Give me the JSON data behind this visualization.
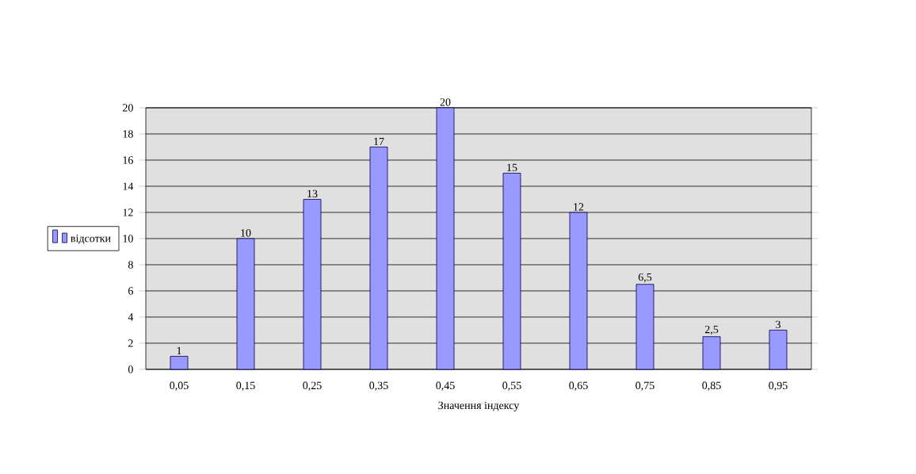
{
  "chart_data": {
    "type": "bar",
    "xlabel": "Значення індексу",
    "categories": [
      "0,05",
      "0,15",
      "0,25",
      "0,35",
      "0,45",
      "0,55",
      "0,65",
      "0,75",
      "0,85",
      "0,95"
    ],
    "series": [
      {
        "name": "відсотки",
        "color": "#9999ff",
        "values": [
          1,
          10,
          13,
          17,
          20,
          15,
          12,
          6.5,
          2.5,
          3
        ],
        "value_labels": [
          "1",
          "10",
          "13",
          "17",
          "20",
          "15",
          "12",
          "6,5",
          "2,5",
          "3"
        ]
      }
    ],
    "ylim": [
      0,
      20
    ],
    "yticks": [
      0,
      2,
      4,
      6,
      8,
      10,
      12,
      14,
      16,
      18,
      20
    ],
    "grid": "y",
    "legend": "left"
  }
}
